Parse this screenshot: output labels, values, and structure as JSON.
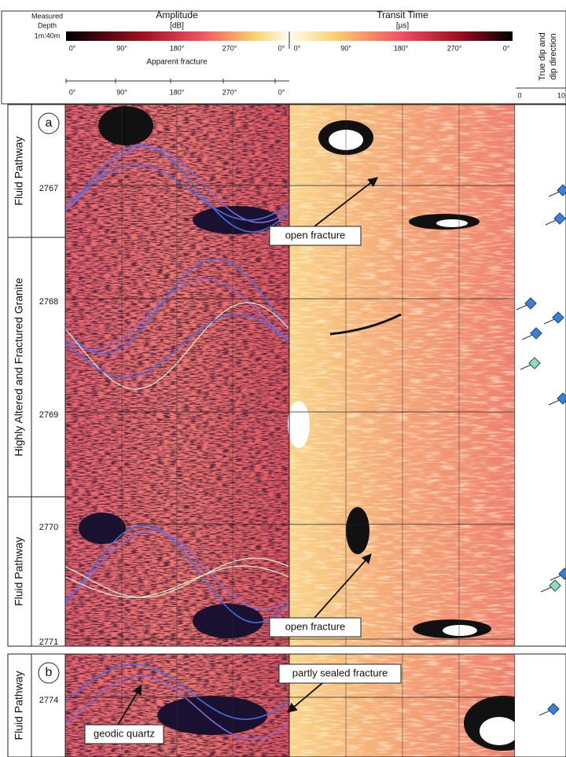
{
  "header": {
    "measured_depth": [
      "Measured",
      "Depth"
    ],
    "scale": "1m:40m",
    "amplitude": {
      "title": "Amplitude",
      "unit": "[dB]",
      "ticks": [
        "0°",
        "90°",
        "180°",
        "270°",
        "0°"
      ]
    },
    "transit_time": {
      "title": "Transit Time",
      "unit": "[µs]",
      "ticks": [
        "0°",
        "90°",
        "180°",
        "270°",
        "0°"
      ]
    },
    "apparent_fracture": {
      "title": "Apparent fracture",
      "ticks": [
        "0°",
        "90°",
        "180°",
        "270°",
        "0°"
      ]
    },
    "dip": {
      "title": [
        "True dip and",
        "dip direction"
      ],
      "ticks": [
        0,
        10
      ]
    }
  },
  "panels": [
    {
      "letter": "a",
      "zones": [
        "Fluid Pathway",
        "Highly Altered and Fractured Granite",
        "Fluid Pathway"
      ],
      "depths": [
        2767,
        2768,
        2769,
        2770,
        2771
      ],
      "annotations": [
        "open fracture",
        "open fracture"
      ]
    },
    {
      "letter": "b",
      "zones": [
        "Fluid Pathway"
      ],
      "depths": [
        2774
      ],
      "annotations": [
        "partly sealed fracture",
        "geodic quartz"
      ]
    }
  ]
}
